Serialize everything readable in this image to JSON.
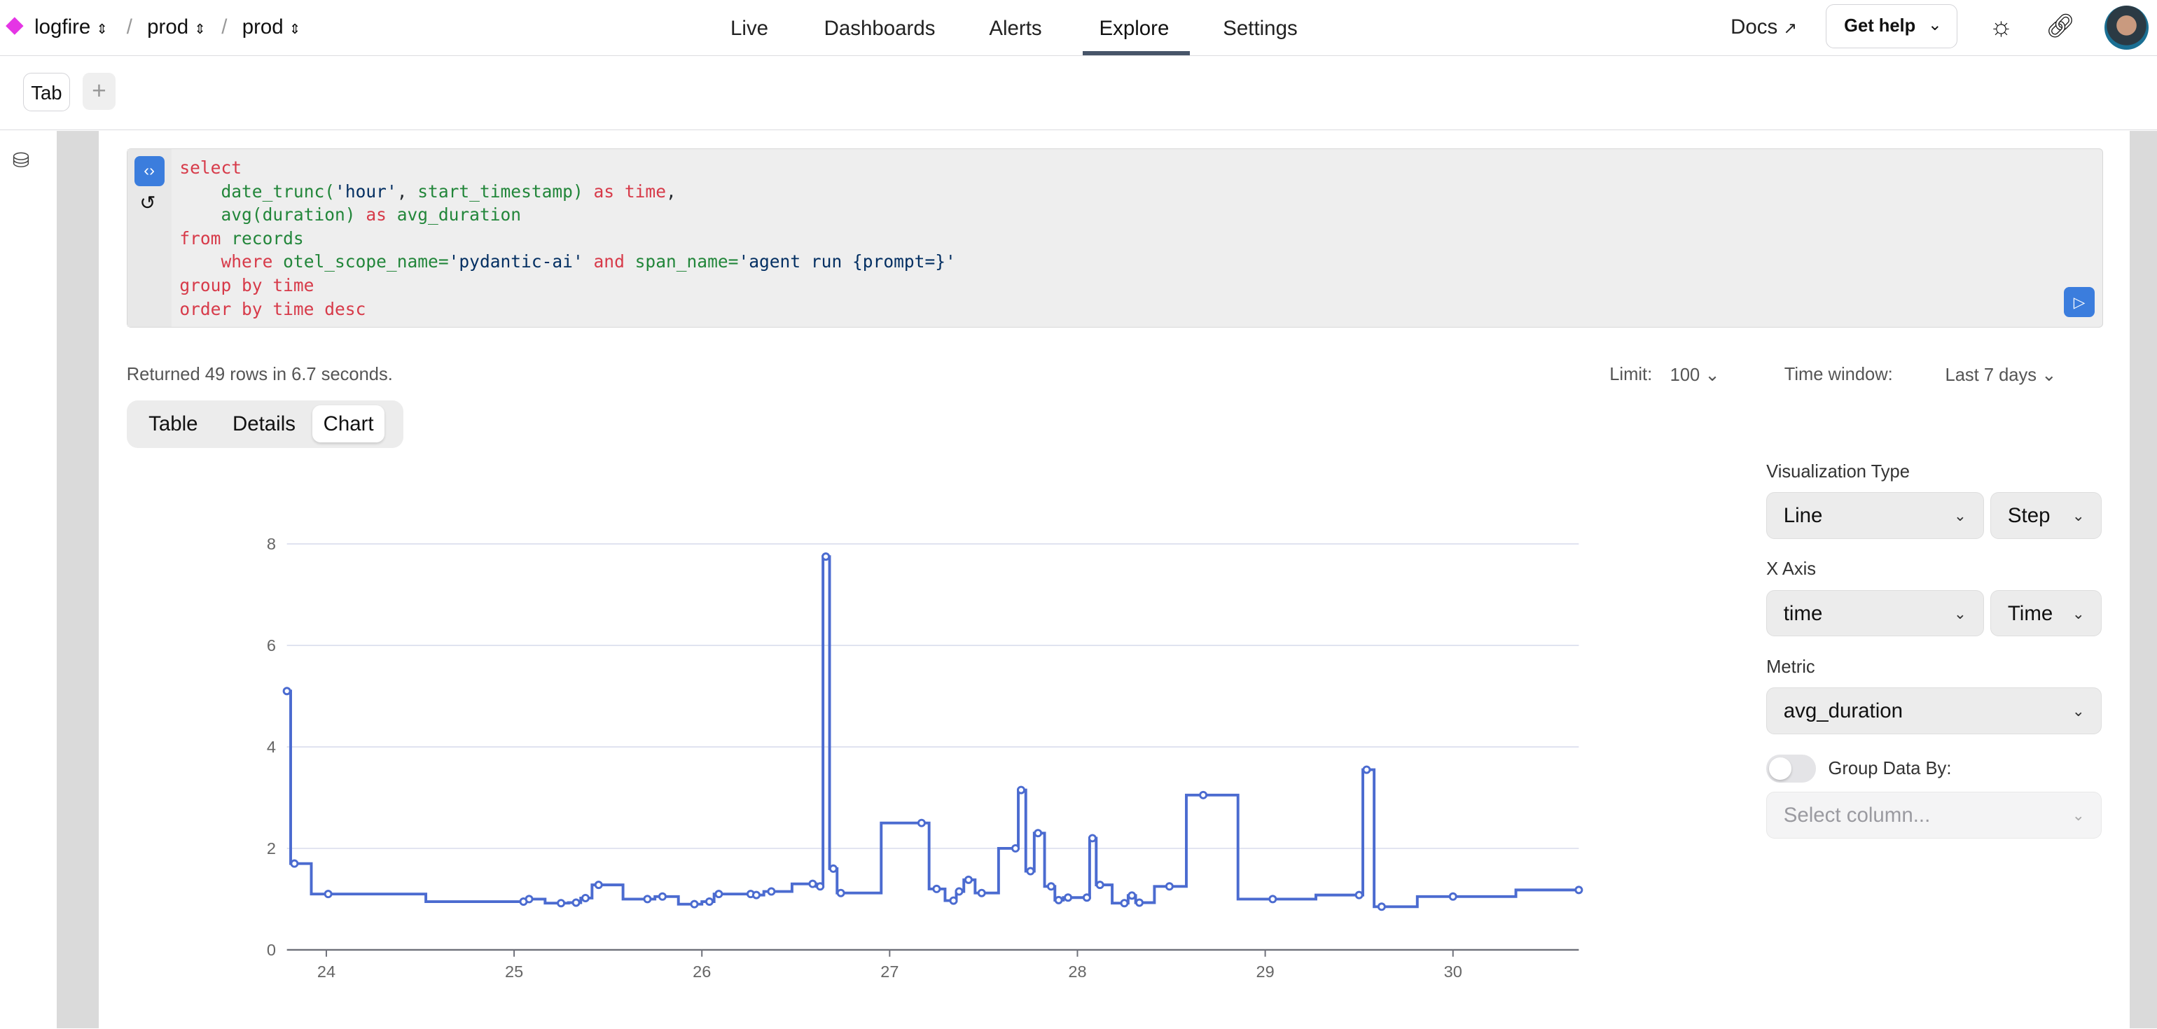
{
  "header": {
    "org": "logfire",
    "project1": "prod",
    "project2": "prod",
    "nav": [
      "Live",
      "Dashboards",
      "Alerts",
      "Explore",
      "Settings"
    ],
    "active_nav": "Explore",
    "docs": "Docs",
    "get_help": "Get help"
  },
  "tabs": {
    "tab_label": "Tab",
    "add_label": "+"
  },
  "editor": {
    "lines": [
      [
        [
          "select",
          "kw"
        ]
      ],
      [
        [
          "    ",
          "pn"
        ],
        [
          "date_trunc(",
          "id"
        ],
        [
          "'hour'",
          "str"
        ],
        [
          ", ",
          "pn"
        ],
        [
          "start_timestamp)",
          "id"
        ],
        [
          " as time",
          "kw"
        ],
        [
          ",",
          "pn"
        ]
      ],
      [
        [
          "    ",
          "pn"
        ],
        [
          "avg(duration)",
          "id"
        ],
        [
          " as ",
          "kw"
        ],
        [
          "avg_duration",
          "id"
        ]
      ],
      [
        [
          "from ",
          "kw"
        ],
        [
          "records",
          "id"
        ]
      ],
      [
        [
          "    ",
          "pn"
        ],
        [
          "where ",
          "kw"
        ],
        [
          "otel_scope_name=",
          "id"
        ],
        [
          "'pydantic-ai'",
          "str"
        ],
        [
          " and ",
          "kw"
        ],
        [
          "span_name=",
          "id"
        ],
        [
          "'agent run {prompt=}'",
          "str"
        ]
      ],
      [
        [
          "group by time",
          "kw"
        ]
      ],
      [
        [
          "order by time desc",
          "kw"
        ]
      ]
    ]
  },
  "results": {
    "status": "Returned 49 rows in 6.7 seconds.",
    "limit_label": "Limit:",
    "limit_value": "100",
    "time_window_label": "Time window:",
    "time_window_value": "Last 7 days"
  },
  "view_tabs": [
    "Table",
    "Details",
    "Chart"
  ],
  "active_view": "Chart",
  "settings": {
    "viz_type_label": "Visualization Type",
    "viz_type": "Line",
    "viz_style": "Step",
    "x_axis_label": "X Axis",
    "x_axis": "time",
    "x_axis_type": "Time",
    "metric_label": "Metric",
    "metric": "avg_duration",
    "group_label": "Group Data By:",
    "group_enabled": false,
    "group_placeholder": "Select column..."
  },
  "colors": {
    "accent": "#3b7ddd",
    "line": "#4b6bd0",
    "brand": "#e535e5"
  },
  "chart_data": {
    "type": "line",
    "step": "middle",
    "grid": true,
    "xlim": [
      23.79,
      30.67
    ],
    "ylim": [
      0,
      8
    ],
    "x_ticks": [
      "24",
      "25",
      "26",
      "27",
      "28",
      "29",
      "30"
    ],
    "y_ticks": [
      "0",
      "2",
      "4",
      "6",
      "8"
    ],
    "x": [
      23.79,
      23.83,
      24.01,
      25.05,
      25.08,
      25.25,
      25.33,
      25.38,
      25.45,
      25.71,
      25.79,
      25.96,
      26.04,
      26.09,
      26.26,
      26.29,
      26.37,
      26.59,
      26.63,
      26.66,
      26.7,
      26.74,
      27.17,
      27.25,
      27.34,
      27.37,
      27.42,
      27.49,
      27.67,
      27.7,
      27.75,
      27.79,
      27.86,
      27.9,
      27.95,
      28.05,
      28.08,
      28.12,
      28.25,
      28.29,
      28.33,
      28.49,
      28.67,
      29.04,
      29.5,
      29.54,
      29.62,
      30.0,
      30.67
    ],
    "y": [
      5.1,
      1.7,
      1.1,
      0.95,
      1.0,
      0.92,
      0.93,
      1.02,
      1.28,
      1.0,
      1.05,
      0.9,
      0.95,
      1.1,
      1.1,
      1.08,
      1.15,
      1.3,
      1.25,
      7.75,
      1.6,
      1.12,
      2.5,
      1.2,
      0.97,
      1.15,
      1.38,
      1.12,
      2.0,
      3.15,
      1.55,
      2.3,
      1.25,
      0.98,
      1.03,
      1.03,
      2.2,
      1.28,
      0.92,
      1.07,
      0.93,
      1.25,
      3.05,
      1.0,
      1.08,
      3.55,
      0.85,
      1.05,
      1.18
    ]
  }
}
